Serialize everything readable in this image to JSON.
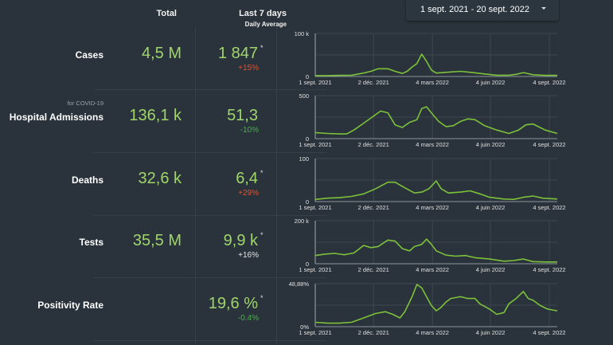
{
  "header": {
    "total_label": "Total",
    "last7_label": "Last 7 days",
    "last7_sub": "Daily Average"
  },
  "date_range": {
    "label": "1 sept. 2021 - 20 sept. 2022",
    "caret_icon": "caret-down-icon"
  },
  "colors": {
    "background": "#2a333b",
    "value_green": "#9fd56b",
    "increase_red": "#e0522e",
    "decrease_green": "#4caf50",
    "line_green": "#7cc13a"
  },
  "rows": [
    {
      "label": "Cases",
      "sublabel": "",
      "total": "4,5 M",
      "avg": "1 847",
      "star": "*",
      "change": "+15%",
      "change_type": "up"
    },
    {
      "label": "Hospital Admissions",
      "sublabel": "for COVID-19",
      "total": "136,1 k",
      "avg": "51,3",
      "star": "",
      "change": "-10%",
      "change_type": "down"
    },
    {
      "label": "Deaths",
      "sublabel": "",
      "total": "32,6 k",
      "avg": "6,4",
      "star": "*",
      "change": "+29%",
      "change_type": "up"
    },
    {
      "label": "Tests",
      "sublabel": "",
      "total": "35,5 M",
      "avg": "9,9 k",
      "star": "*",
      "change": "+16%",
      "change_type": "neutral"
    },
    {
      "label": "Positivity Rate",
      "sublabel": "",
      "total": "",
      "avg": "19,6 %",
      "star": "*",
      "change": "-0.4%",
      "change_type": "down"
    }
  ],
  "chart_data": [
    {
      "type": "line",
      "title": "Cases",
      "x_tick_labels": [
        "1 sept. 2021",
        "2 déc. 2021",
        "4 mars 2022",
        "4 juin 2022",
        "4 sept. 2022"
      ],
      "y_tick_labels": [
        "0",
        "100 k"
      ],
      "ylim": [
        0,
        100000
      ],
      "grid": true,
      "x": [
        0,
        0.05,
        0.1,
        0.15,
        0.2,
        0.23,
        0.26,
        0.3,
        0.33,
        0.36,
        0.38,
        0.4,
        0.42,
        0.44,
        0.46,
        0.48,
        0.5,
        0.55,
        0.6,
        0.65,
        0.7,
        0.75,
        0.8,
        0.83,
        0.86,
        0.9,
        0.95,
        1
      ],
      "values": [
        2000,
        2000,
        2500,
        3000,
        8000,
        12000,
        18000,
        18000,
        12000,
        7000,
        12000,
        22000,
        30000,
        52000,
        35000,
        15000,
        8000,
        10000,
        12000,
        9000,
        6000,
        3000,
        3000,
        5000,
        9000,
        4000,
        2500,
        2500
      ]
    },
    {
      "type": "line",
      "title": "Hospital Admissions",
      "x_tick_labels": [
        "1 sept. 2021",
        "2 déc. 2021",
        "4 mars 2022",
        "4 juin 2022",
        "4 sept. 2022"
      ],
      "y_tick_labels": [
        "0",
        "500"
      ],
      "ylim": [
        0,
        500
      ],
      "grid": true,
      "x": [
        0,
        0.05,
        0.1,
        0.13,
        0.16,
        0.2,
        0.24,
        0.27,
        0.3,
        0.33,
        0.36,
        0.39,
        0.42,
        0.44,
        0.46,
        0.48,
        0.51,
        0.54,
        0.57,
        0.6,
        0.63,
        0.66,
        0.7,
        0.75,
        0.8,
        0.84,
        0.87,
        0.9,
        0.95,
        1
      ],
      "values": [
        70,
        60,
        55,
        55,
        100,
        180,
        260,
        320,
        300,
        160,
        130,
        190,
        220,
        350,
        370,
        300,
        200,
        140,
        150,
        200,
        230,
        220,
        150,
        100,
        60,
        100,
        160,
        170,
        100,
        60
      ]
    },
    {
      "type": "line",
      "title": "Deaths",
      "x_tick_labels": [
        "1 sept. 2021",
        "2 déc. 2021",
        "4 mars 2022",
        "4 juin 2022",
        "4 sept. 2022"
      ],
      "y_tick_labels": [
        "0",
        "100"
      ],
      "ylim": [
        0,
        100
      ],
      "grid": true,
      "x": [
        0,
        0.05,
        0.1,
        0.15,
        0.2,
        0.25,
        0.3,
        0.33,
        0.37,
        0.41,
        0.44,
        0.47,
        0.5,
        0.52,
        0.55,
        0.6,
        0.64,
        0.68,
        0.72,
        0.78,
        0.82,
        0.86,
        0.9,
        0.94,
        1
      ],
      "values": [
        5,
        8,
        9,
        12,
        18,
        30,
        45,
        45,
        32,
        20,
        22,
        30,
        48,
        30,
        20,
        22,
        25,
        18,
        10,
        6,
        5,
        10,
        13,
        8,
        6
      ]
    },
    {
      "type": "line",
      "title": "Tests",
      "x_tick_labels": [
        "1 sept. 2021",
        "2 déc. 2021",
        "4 mars 2022",
        "4 juin 2022",
        "4 sept. 2022"
      ],
      "y_tick_labels": [
        "0",
        "200 k"
      ],
      "ylim": [
        0,
        200000
      ],
      "grid": true,
      "x": [
        0,
        0.04,
        0.08,
        0.12,
        0.16,
        0.2,
        0.23,
        0.26,
        0.3,
        0.33,
        0.36,
        0.39,
        0.41,
        0.44,
        0.46,
        0.48,
        0.5,
        0.54,
        0.58,
        0.62,
        0.66,
        0.72,
        0.78,
        0.82,
        0.86,
        0.9,
        0.95,
        1
      ],
      "values": [
        38000,
        45000,
        48000,
        42000,
        50000,
        85000,
        75000,
        80000,
        110000,
        105000,
        70000,
        60000,
        80000,
        90000,
        115000,
        90000,
        60000,
        40000,
        35000,
        38000,
        28000,
        22000,
        12000,
        15000,
        22000,
        10000,
        8000,
        8000
      ]
    },
    {
      "type": "line",
      "title": "Positivity Rate",
      "x_tick_labels": [
        "1 sept. 2021",
        "2 déc. 2021",
        "4 mars 2022",
        "4 juin 2022",
        "4 sept. 2022"
      ],
      "y_tick_labels": [
        "0%",
        "48,88%"
      ],
      "ylim": [
        0,
        48.88
      ],
      "grid": true,
      "x": [
        0,
        0.05,
        0.1,
        0.15,
        0.2,
        0.25,
        0.29,
        0.32,
        0.35,
        0.37,
        0.4,
        0.42,
        0.44,
        0.46,
        0.48,
        0.5,
        0.52,
        0.54,
        0.56,
        0.6,
        0.63,
        0.66,
        0.68,
        0.72,
        0.75,
        0.78,
        0.8,
        0.83,
        0.86,
        0.88,
        0.9,
        0.93,
        0.96,
        1
      ],
      "values": [
        5,
        4,
        4,
        5,
        10,
        15,
        17,
        14,
        10,
        17,
        34,
        48,
        44,
        34,
        24,
        18,
        22,
        28,
        32,
        34,
        32,
        32,
        26,
        20,
        14,
        16,
        26,
        32,
        40,
        32,
        30,
        24,
        20,
        18
      ]
    }
  ]
}
